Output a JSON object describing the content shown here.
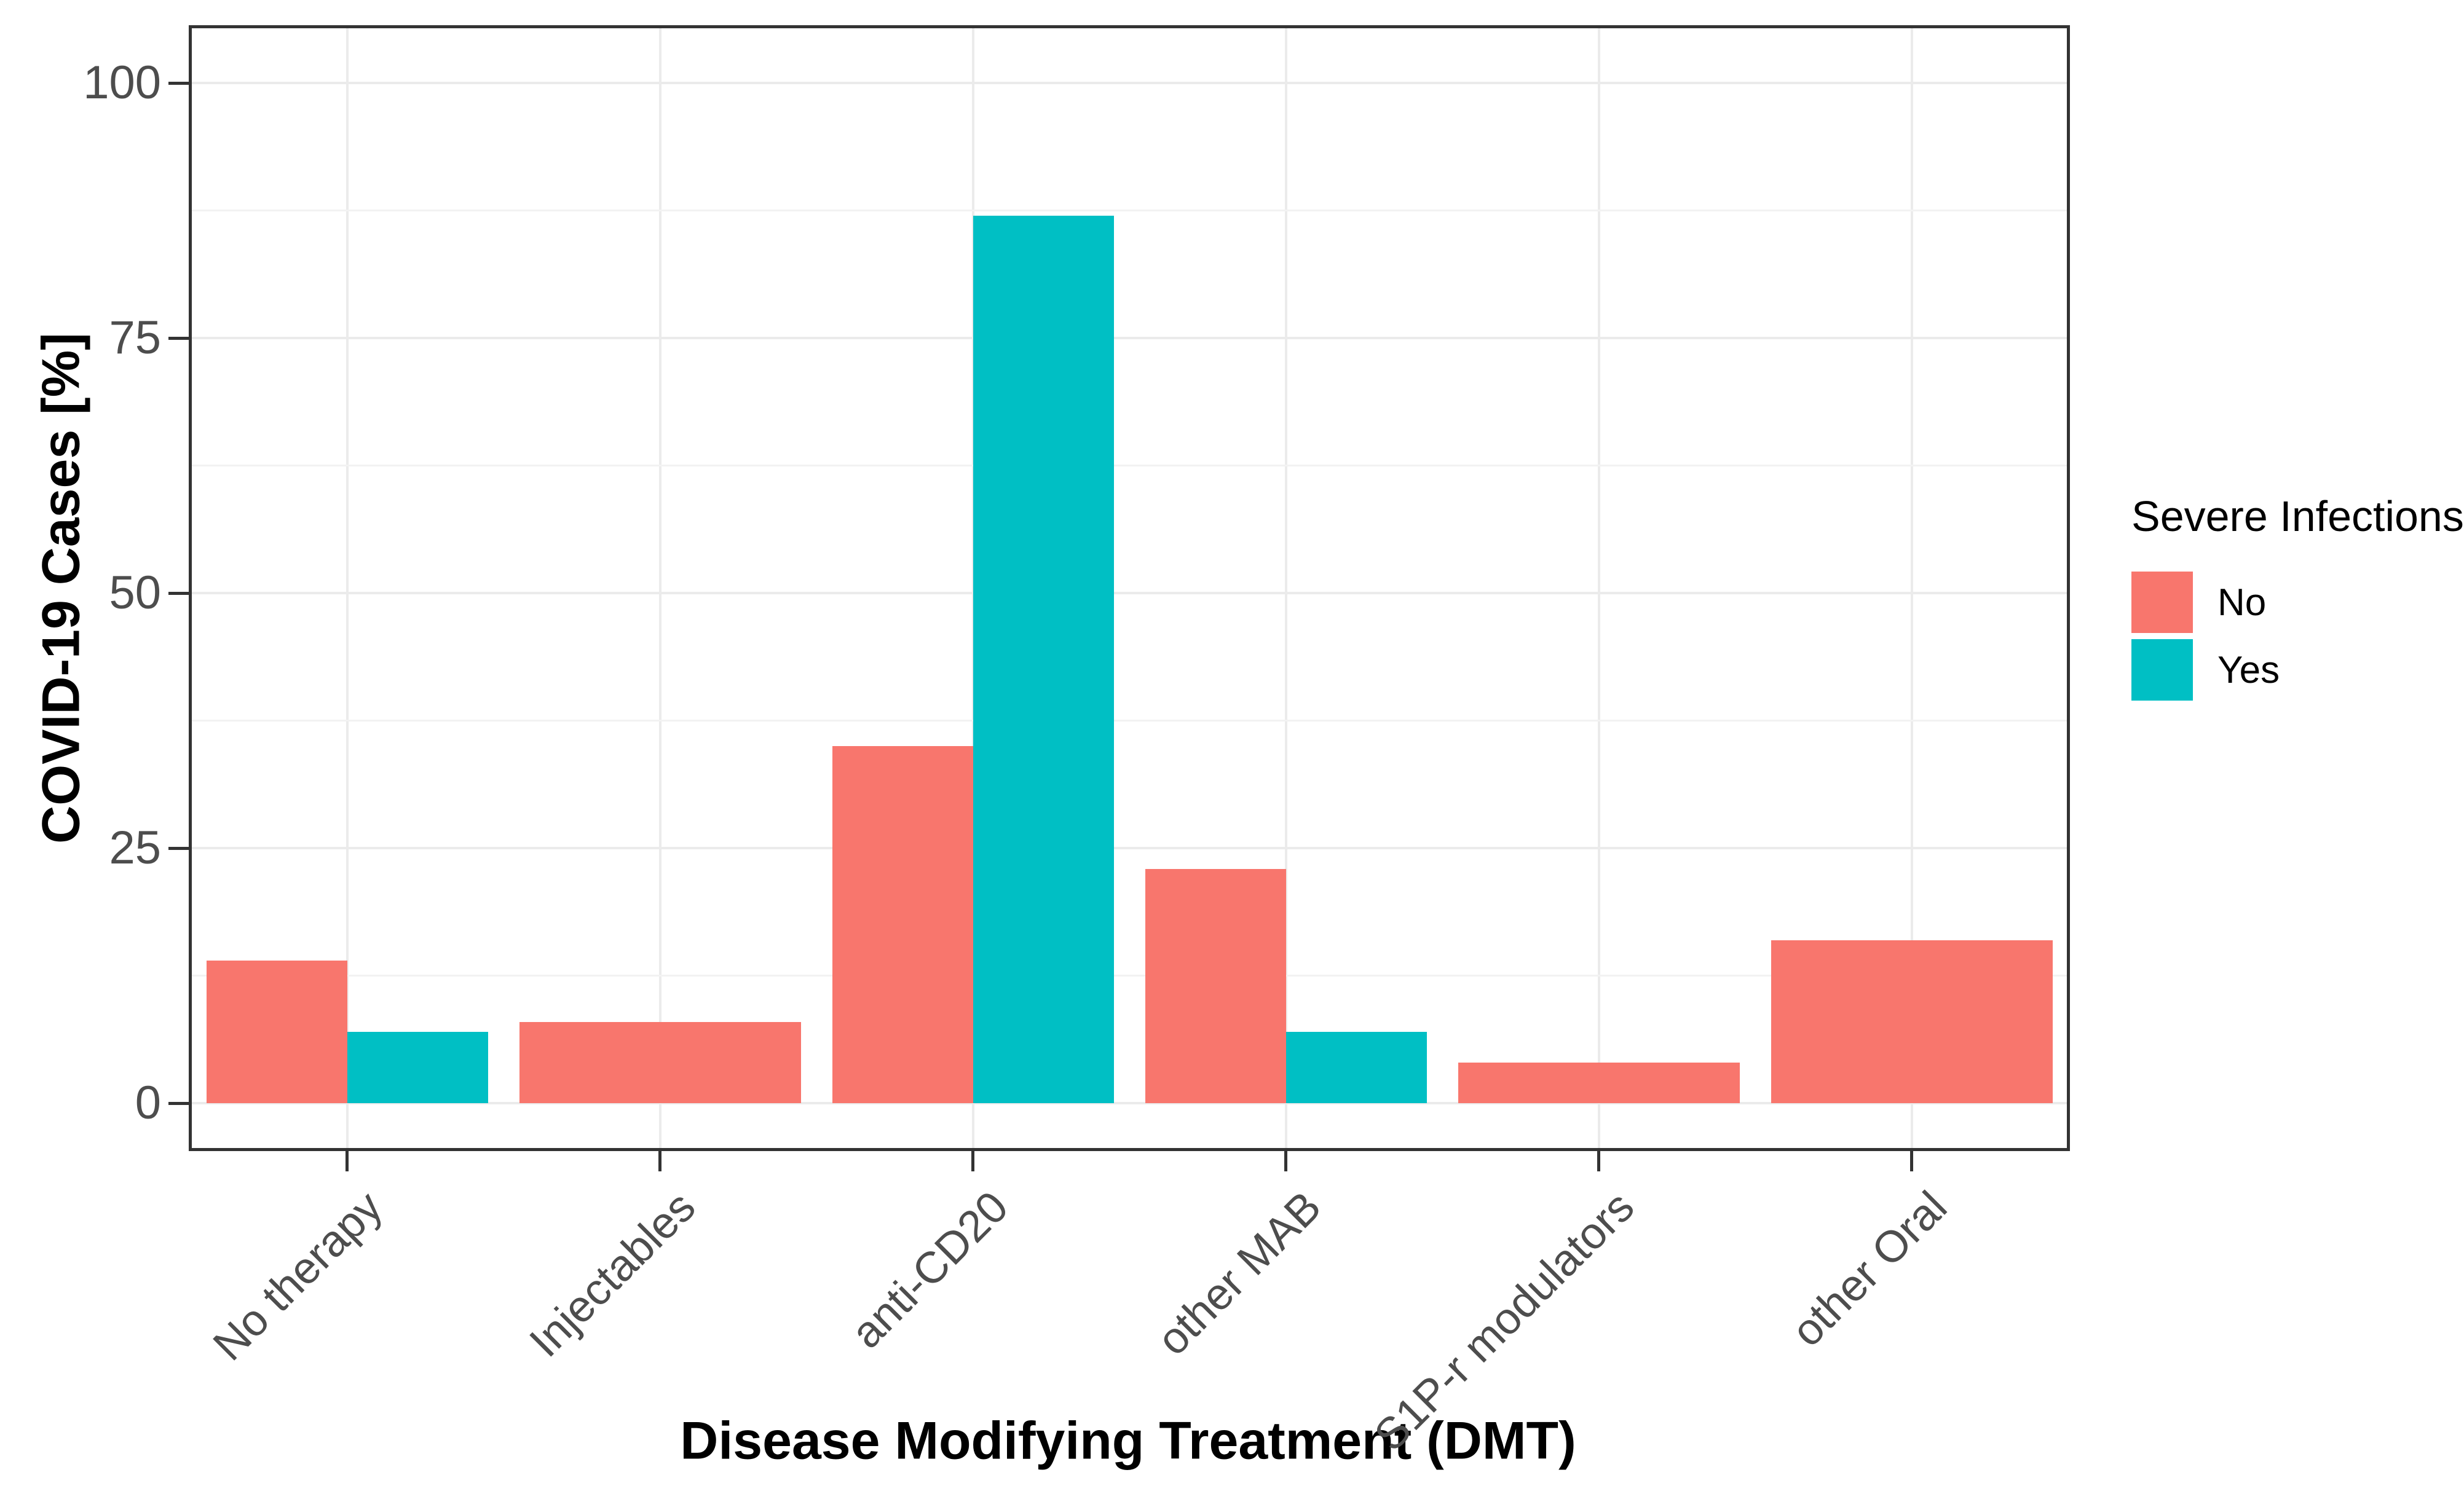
{
  "chart_data": {
    "type": "bar",
    "title": "",
    "xlabel": "Disease Modifying Treatment (DMT)",
    "ylabel": "COVID-19 Cases [%]",
    "categories": [
      "No therapy",
      "Injectables",
      "anti-CD20",
      "other MAB",
      "S1P-r modulators",
      "other Oral"
    ],
    "series": [
      {
        "name": "No",
        "color": "#F8766D",
        "values": [
          14,
          8,
          35,
          23,
          4,
          16
        ]
      },
      {
        "name": "Yes",
        "color": "#00BFC4",
        "values": [
          7,
          null,
          87,
          7,
          null,
          null
        ]
      }
    ],
    "legend": {
      "title": "Severe Infections",
      "position": "right"
    },
    "yticks": [
      0,
      25,
      50,
      75,
      100
    ],
    "minor_gridlines": [
      12.5,
      37.5,
      62.5,
      87.5
    ],
    "ylim": [
      0,
      100
    ],
    "grid": true,
    "bar_group_width": 0.9,
    "dodge": true
  },
  "colors": {
    "grid_major": "#EBEBEB",
    "grid_minor": "#F2F2F2",
    "panel_border": "#333333",
    "tick_mark": "#333333",
    "tick_label": "#4D4D4D",
    "background": "#FFFFFF"
  }
}
